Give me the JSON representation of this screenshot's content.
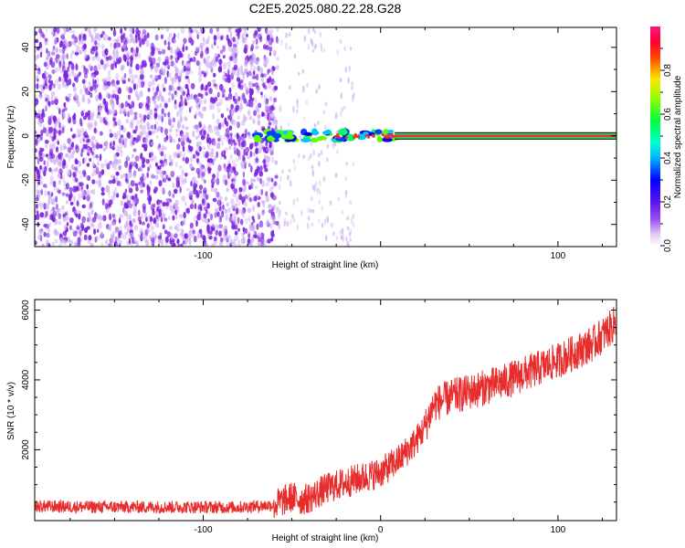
{
  "title": "C2E5.2025.080.22.28.G28",
  "colors": {
    "snr_line": "#e82c2c",
    "noise_dot": "#7a1fe0",
    "noise_light": "#c8a8f2",
    "frame": "#000000"
  },
  "chart_data": [
    {
      "type": "heatmap",
      "xlabel": "Height of straight line (km)",
      "ylabel": "Frequency (Hz)",
      "xlim": [
        -195,
        133
      ],
      "ylim": [
        -50,
        49
      ],
      "xticks": [
        -100,
        0,
        100
      ],
      "xtick_labels": [
        "-100",
        "",
        "100"
      ],
      "yticks": [
        -40,
        -20,
        0,
        20,
        40
      ],
      "ytick_labels": [
        "-40",
        "-20",
        "0",
        "20",
        "40"
      ],
      "colorbar": {
        "label": "Normalized spectral amplitude",
        "range": [
          0,
          1
        ],
        "ticks": [
          0.0,
          0.2,
          0.4,
          0.6,
          0.8
        ],
        "tick_labels": [
          "0.0",
          "0.2",
          "0.4",
          "0.6",
          "0.8"
        ],
        "colormap": "rainbow (white-violet-blue-cyan-green-yellow-red-magenta)"
      },
      "features": {
        "noise_region_x": [
          -195,
          -58
        ],
        "sparse_noise_x": [
          -58,
          -35
        ],
        "signal_start_x": -72,
        "signal_frequency_hz": 0,
        "signal_amplitude_after_x10": 0.95
      },
      "grid": false
    },
    {
      "type": "line",
      "xlabel": "Height of straight line (km)",
      "ylabel": "SNR (10 * v/v)",
      "xlim": [
        -195,
        133
      ],
      "ylim": [
        -30,
        6300
      ],
      "xticks": [
        -100,
        0,
        100
      ],
      "xtick_labels": [
        "-100",
        "0",
        "100"
      ],
      "yticks": [
        2000,
        4000,
        6000
      ],
      "ytick_labels": [
        "2000",
        "4000",
        "6000"
      ],
      "series": [
        {
          "x": [
            -195,
            -160,
            -120,
            -80,
            -60,
            -50,
            -45,
            -40,
            -30,
            -20,
            -10,
            0,
            10,
            20,
            25,
            30,
            40,
            50,
            60,
            70,
            80,
            90,
            100,
            110,
            120,
            130,
            133
          ],
          "y": [
            380,
            360,
            360,
            350,
            420,
            650,
            560,
            620,
            900,
            1050,
            1200,
            1350,
            1700,
            2250,
            2650,
            3300,
            3520,
            3650,
            3800,
            3950,
            4150,
            4350,
            4550,
            4800,
            5050,
            5500,
            5700
          ]
        }
      ],
      "grid": false
    }
  ]
}
